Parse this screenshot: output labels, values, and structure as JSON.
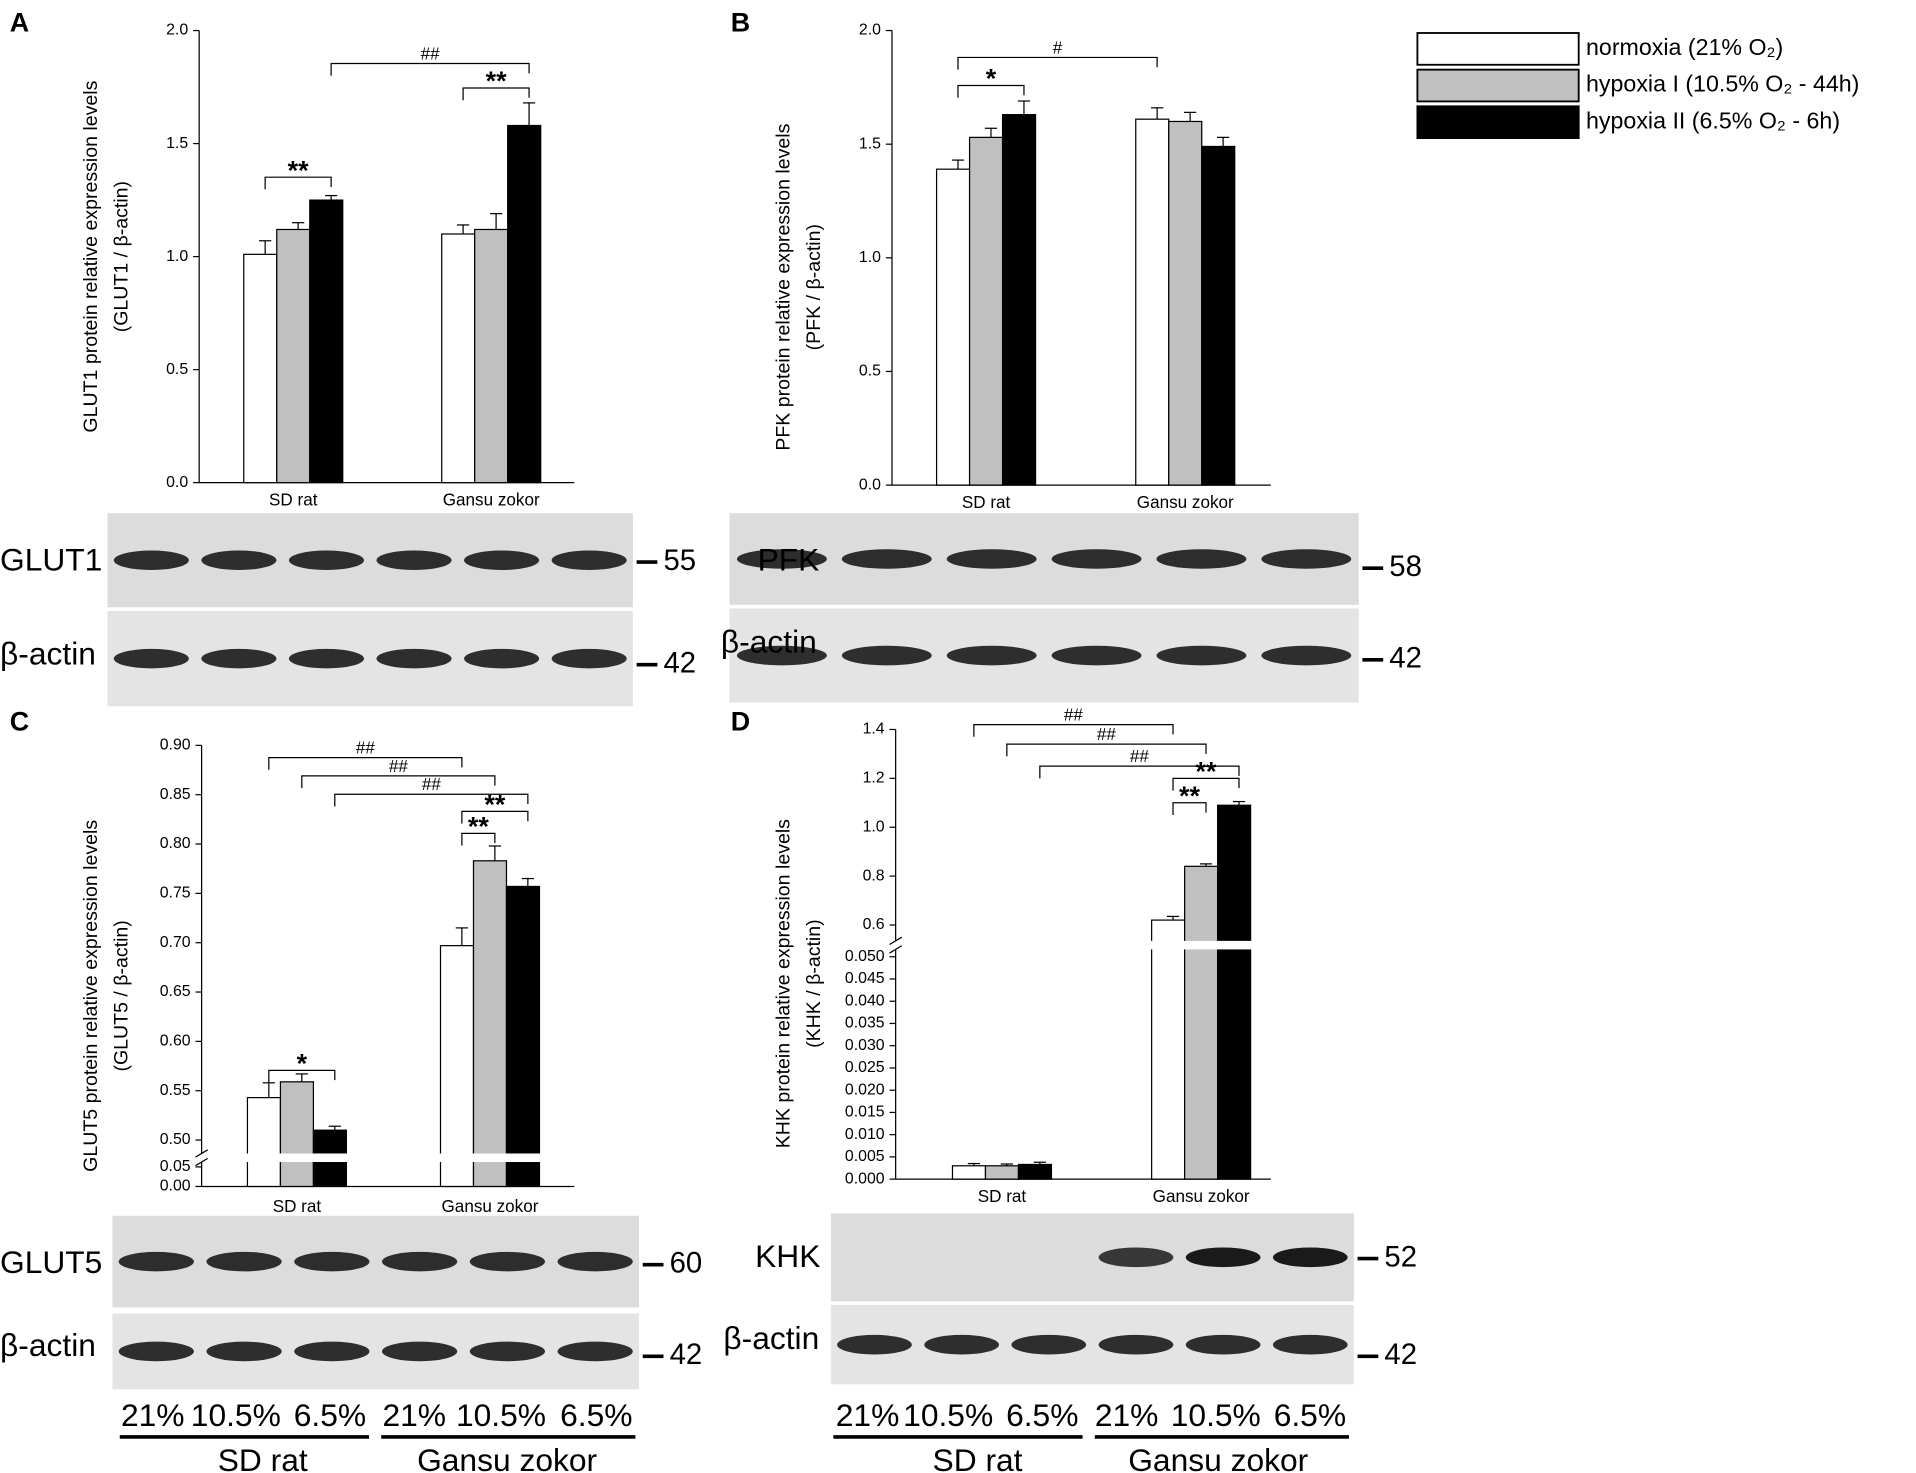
{
  "chart_data": [
    {
      "type": "bar",
      "panel": "A",
      "ylabel": [
        "GLUT1 protein relative expression levels",
        "(GLUT1 / β-actin)"
      ],
      "categories": [
        "SD rat",
        "Gansu zokor"
      ],
      "series": [
        {
          "name": "normoxia  (21% O₂)",
          "color": "#ffffff",
          "values": [
            1.01,
            1.1
          ],
          "errors": [
            0.06,
            0.04
          ]
        },
        {
          "name": "hypoxia I  (10.5% O₂ - 44h)",
          "color": "#c0c0c0",
          "values": [
            1.12,
            1.12
          ],
          "errors": [
            0.03,
            0.07
          ]
        },
        {
          "name": "hypoxia II (6.5% O₂ - 6h)",
          "color": "#000000",
          "values": [
            1.25,
            1.58
          ],
          "errors": [
            0.02,
            0.1
          ]
        }
      ],
      "ylim": [
        0,
        2
      ],
      "yticks": [
        {
          "value": 0,
          "label": "0.0"
        },
        0.5,
        {
          "value": 1,
          "label": "1.0"
        },
        1.5,
        {
          "value": 2,
          "label": "2.0"
        }
      ],
      "annotations": [
        "**",
        "##",
        "**"
      ],
      "legend": "upper right",
      "blots": [
        {
          "label": "GLUT1",
          "kda": 55
        },
        {
          "label": "β-actin",
          "kda": 42
        }
      ]
    },
    {
      "type": "bar",
      "panel": "B",
      "ylabel": [
        "PFK protein relative expression levels",
        "(PFK / β-actin)"
      ],
      "categories": [
        "SD rat",
        "Gansu zokor"
      ],
      "series": [
        {
          "color": "#ffffff",
          "values": [
            1.39,
            1.61
          ],
          "errors": [
            0.04,
            0.05
          ]
        },
        {
          "color": "#c0c0c0",
          "values": [
            1.53,
            1.6
          ],
          "errors": [
            0.04,
            0.04
          ]
        },
        {
          "color": "#000000",
          "values": [
            1.63,
            1.49
          ],
          "errors": [
            0.06,
            0.04
          ]
        }
      ],
      "ylim": [
        0,
        2
      ],
      "yticks": [
        {
          "value": 0,
          "label": "0.0"
        },
        0.5,
        {
          "value": 1,
          "label": "1.0"
        },
        1.5,
        {
          "value": 2,
          "label": "2.0"
        }
      ],
      "annotations": [
        "*",
        "#"
      ],
      "blots": [
        {
          "label": "PFK",
          "kda": 58
        },
        {
          "label": "β-actin",
          "kda": 42
        }
      ]
    },
    {
      "type": "bar",
      "panel": "C",
      "ylabel": [
        "GLUT5 protein relative expression levels",
        "(GLUT5 / β-actin)"
      ],
      "categories": [
        "SD rat",
        "Gansu zokor"
      ],
      "series": [
        {
          "color": "#ffffff",
          "values": [
            0.543,
            0.697
          ],
          "errors": [
            0.015,
            0.018
          ]
        },
        {
          "color": "#c0c0c0",
          "values": [
            0.559,
            0.783
          ],
          "errors": [
            0.008,
            0.015
          ]
        },
        {
          "color": "#000000",
          "values": [
            0.51,
            0.757
          ],
          "errors": [
            0.004,
            0.008
          ]
        }
      ],
      "yaxis_segments": [
        {
          "ylim": [
            0,
            0.05
          ],
          "yticks": [
            {
              "value": 0,
              "label": "0.00"
            },
            0.05
          ]
        },
        {
          "ylim": [
            0.5,
            0.9
          ],
          "yticks": [
            {
              "value": 0.5,
              "label": "0.50"
            },
            0.55,
            {
              "value": 0.6,
              "label": "0.60"
            },
            0.65,
            {
              "value": 0.7,
              "label": "0.70"
            },
            0.75,
            {
              "value": 0.8,
              "label": "0.80"
            },
            0.85,
            {
              "value": 0.9,
              "label": "0.90"
            }
          ]
        }
      ],
      "annotations": [
        "*",
        "##",
        "##",
        "##",
        "**",
        "**"
      ],
      "blots": [
        {
          "label": "GLUT5",
          "kda": 60
        },
        {
          "label": "β-actin",
          "kda": 42
        }
      ],
      "lanes": [
        "21%",
        "10.5%",
        "6.5%"
      ]
    },
    {
      "type": "bar",
      "panel": "D",
      "ylabel": [
        "KHK protein relative expression levels",
        "(KHK / β-actin)"
      ],
      "categories": [
        "SD rat",
        "Gansu zokor"
      ],
      "series": [
        {
          "color": "#ffffff",
          "values": [
            0.003,
            0.62
          ],
          "errors": [
            0.0005,
            0.015
          ]
        },
        {
          "color": "#c0c0c0",
          "values": [
            0.003,
            0.84
          ],
          "errors": [
            0.0004,
            0.01
          ]
        },
        {
          "color": "#000000",
          "values": [
            0.0033,
            1.09
          ],
          "errors": [
            0.0005,
            0.015
          ]
        }
      ],
      "yaxis_segments": [
        {
          "ylim": [
            0,
            0.05
          ],
          "yticks": [
            {
              "value": 0,
              "label": "0.000"
            },
            0.005,
            {
              "value": 0.01,
              "label": "0.010"
            },
            0.015,
            {
              "value": 0.02,
              "label": "0.020"
            },
            0.025,
            {
              "value": 0.03,
              "label": "0.030"
            },
            0.035,
            {
              "value": 0.04,
              "label": "0.040"
            },
            0.045,
            {
              "value": 0.05,
              "label": "0.050"
            }
          ]
        },
        {
          "ylim": [
            0.6,
            1.4
          ],
          "yticks": [
            0.6,
            0.8,
            {
              "value": 1,
              "label": "1.0"
            },
            1.2,
            1.4
          ]
        }
      ],
      "annotations": [
        "##",
        "##",
        "##",
        "**",
        "**"
      ],
      "blots": [
        {
          "label": "KHK",
          "kda": 52
        },
        {
          "label": "β-actin",
          "kda": 42
        }
      ],
      "lanes": [
        "21%",
        "10.5%",
        "6.5%"
      ]
    }
  ]
}
